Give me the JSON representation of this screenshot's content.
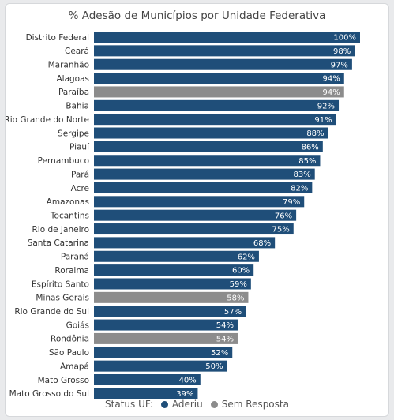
{
  "chart_data": {
    "type": "bar",
    "orientation": "horizontal",
    "title": "% Adesão de Municípios por Unidade Federativa",
    "value_suffix": "%",
    "xlim": [
      0,
      100
    ],
    "categories": [
      "Distrito Federal",
      "Ceará",
      "Maranhão",
      "Alagoas",
      "Paraíba",
      "Bahia",
      "Rio Grande do Norte",
      "Sergipe",
      "Piauí",
      "Pernambuco",
      "Pará",
      "Acre",
      "Amazonas",
      "Tocantins",
      "Rio de Janeiro",
      "Santa Catarina",
      "Paraná",
      "Roraima",
      "Espírito Santo",
      "Minas Gerais",
      "Rio Grande do Sul",
      "Goiás",
      "Rondônia",
      "São Paulo",
      "Amapá",
      "Mato Grosso",
      "Mato Grosso do Sul"
    ],
    "values": [
      100,
      98,
      97,
      94,
      94,
      92,
      91,
      88,
      86,
      85,
      83,
      82,
      79,
      76,
      75,
      68,
      62,
      60,
      59,
      58,
      57,
      54,
      54,
      52,
      50,
      40,
      39
    ],
    "status": [
      "Aderiu",
      "Aderiu",
      "Aderiu",
      "Aderiu",
      "Sem Resposta",
      "Aderiu",
      "Aderiu",
      "Aderiu",
      "Aderiu",
      "Aderiu",
      "Aderiu",
      "Aderiu",
      "Aderiu",
      "Aderiu",
      "Aderiu",
      "Aderiu",
      "Aderiu",
      "Aderiu",
      "Aderiu",
      "Sem Resposta",
      "Aderiu",
      "Aderiu",
      "Sem Resposta",
      "Aderiu",
      "Aderiu",
      "Aderiu",
      "Aderiu"
    ],
    "legend": {
      "title": "Status UF:",
      "placement": "bottom",
      "entries": [
        {
          "name": "Aderiu",
          "color": "#1f4e79"
        },
        {
          "name": "Sem Resposta",
          "color": "#8c8c8c"
        }
      ]
    }
  }
}
